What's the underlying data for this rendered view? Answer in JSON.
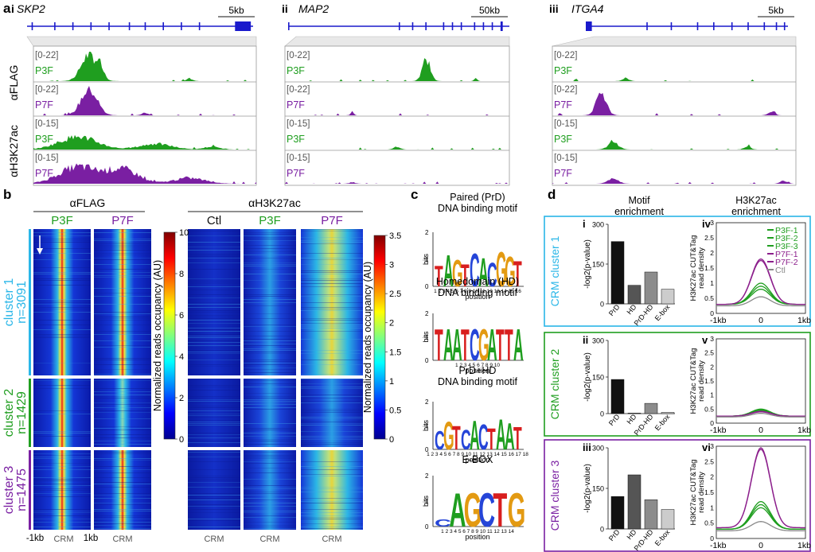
{
  "panel_a": {
    "letter": "a",
    "genes": [
      {
        "roman": "i",
        "name": "SKP2",
        "scale": "5kb"
      },
      {
        "roman": "ii",
        "name": "MAP2",
        "scale": "50kb"
      },
      {
        "roman": "iii",
        "name": "ITGA4",
        "scale": "5kb"
      }
    ],
    "antibodies": [
      "αFLAG",
      "αH3K27ac"
    ],
    "tracks": [
      {
        "range": "[0-22]",
        "label": "P3F"
      },
      {
        "range": "[0-22]",
        "label": "P7F"
      },
      {
        "range": "[0-15]",
        "label": "P3F"
      },
      {
        "range": "[0-15]",
        "label": "P7F"
      }
    ],
    "colors": {
      "P3F": "#1f9e1f",
      "P7F": "#7a1fa2",
      "gene": "#1a1acc"
    }
  },
  "panel_b": {
    "letter": "b",
    "flag_title": "αFLAG",
    "h3_title": "αH3K27ac",
    "flag_cols": [
      "P3F",
      "P7F"
    ],
    "h3_cols": [
      "Ctl",
      "P3F",
      "P7F"
    ],
    "clusters": [
      {
        "name": "cluster 1",
        "n": "n=3091",
        "color": "#29b6e8"
      },
      {
        "name": "cluster 2",
        "n": "n=1429",
        "color": "#1f9e1f"
      },
      {
        "name": "cluster 3",
        "n": "n=1475",
        "color": "#7a1fa2"
      }
    ],
    "x_left": "-1kb",
    "x_center": "CRM",
    "x_right": "1kb",
    "cbar1": {
      "label": "Normalized reads occupancy (AU)",
      "ticks": [
        "10",
        "8",
        "6",
        "4",
        "2",
        "0"
      ]
    },
    "cbar2": {
      "label": "Normalized reads occupancy (AU)",
      "ticks": [
        "3.5",
        "3",
        "2.5",
        "2",
        "1.5",
        "1",
        "0.5",
        "0"
      ]
    }
  },
  "panel_c": {
    "letter": "c",
    "motifs": [
      {
        "title1": "Paired (PrD)",
        "title2": "DNA binding motif",
        "seq": "TAGTCACGGT",
        "positions": "1 2 3 4 5 6 7 8 9 10 11 12 13 14 15 16"
      },
      {
        "title1": "Homedomain (HD)",
        "title2": "DNA binding motif",
        "seq": "TAATCGATTA",
        "positions": "1 2 3 4 5 6 7 8 9 10"
      },
      {
        "title1": "PrD+HD",
        "title2": "DNA binding motif",
        "seq": "CGTCACTAAT",
        "positions": "1 2 3 4 5 6 7 8 9 10 11 12 13 14 15 16 17 18"
      },
      {
        "title1": "E-BOX",
        "title2": "",
        "seq": "CAGCTG",
        "positions": "1 2 3 4 5 6 7 8 9 10 11 12 13 14"
      }
    ],
    "y_label": "bits",
    "x_label": "position",
    "y_ticks": [
      "2",
      "1",
      "0"
    ]
  },
  "panel_d": {
    "letter": "d",
    "col1_title1": "Motif",
    "col1_title2": "enrichment",
    "col2_title1": "H3K27ac",
    "col2_title2": "enrichment",
    "bar_ylabel": "-log2(p-value)",
    "bar_categories": [
      "PrD",
      "HD",
      "PrD-HD",
      "E-box"
    ],
    "bar_colors": [
      "#111111",
      "#555555",
      "#8c8c8c",
      "#cccccc"
    ],
    "line_ylabel1": "H3K27ac CUT&Tag",
    "line_ylabel2": "read density",
    "x_left": "-1kb",
    "x_center": "0",
    "x_right": "1kb",
    "legend": [
      "P3F-1",
      "P3F-2",
      "P3F-3",
      "P7F-1",
      "P7F-2",
      "Ctl"
    ],
    "rows": [
      {
        "label": "CRM cluster 1",
        "color": "#29b6e8",
        "roman_bar": "i",
        "roman_line": "iv",
        "bar_ticks": [
          "300",
          "150",
          "0"
        ],
        "line_ticks": [
          "3",
          "2.5",
          "2",
          "1.5",
          "1",
          "0.5",
          "0"
        ]
      },
      {
        "label": "CRM cluster 2",
        "color": "#1f9e1f",
        "roman_bar": "ii",
        "roman_line": "v",
        "bar_ticks": [
          "300",
          "150",
          "0"
        ],
        "line_ticks": [
          "3",
          "2.5",
          "2",
          "1.5",
          "1",
          "0.5",
          "0"
        ]
      },
      {
        "label": "CRM cluster 3",
        "color": "#7a1fa2",
        "roman_bar": "iii",
        "roman_line": "vi",
        "bar_ticks": [
          "300",
          "150",
          "0"
        ],
        "line_ticks": [
          "3",
          "2.5",
          "2",
          "1.5",
          "1",
          "0.5",
          "0"
        ]
      }
    ]
  },
  "chart_data": [
    {
      "type": "bar",
      "panel": "d-i",
      "categories": [
        "PrD",
        "HD",
        "PrD-HD",
        "E-box"
      ],
      "values": [
        235,
        70,
        120,
        55
      ],
      "ylabel": "-log2(p-value)",
      "ylim": [
        0,
        300
      ]
    },
    {
      "type": "bar",
      "panel": "d-ii",
      "categories": [
        "PrD",
        "HD",
        "PrD-HD",
        "E-box"
      ],
      "values": [
        140,
        2,
        42,
        5
      ],
      "ylabel": "-log2(p-value)",
      "ylim": [
        0,
        300
      ]
    },
    {
      "type": "bar",
      "panel": "d-iii",
      "categories": [
        "PrD",
        "HD",
        "PrD-HD",
        "E-box"
      ],
      "values": [
        120,
        200,
        108,
        72
      ],
      "ylabel": "-log2(p-value)",
      "ylim": [
        0,
        300
      ]
    },
    {
      "type": "line",
      "panel": "d-iv",
      "x_range": [
        -1,
        1
      ],
      "ylim": [
        0,
        3
      ],
      "series": [
        {
          "name": "P3F-1",
          "peak": 1.0,
          "base": 0.3
        },
        {
          "name": "P3F-2",
          "peak": 0.9,
          "base": 0.3
        },
        {
          "name": "P3F-3",
          "peak": 0.8,
          "base": 0.3
        },
        {
          "name": "P7F-1",
          "peak": 1.8,
          "base": 0.3
        },
        {
          "name": "P7F-2",
          "peak": 1.75,
          "base": 0.3
        },
        {
          "name": "Ctl",
          "peak": 0.55,
          "base": 0.25
        }
      ]
    },
    {
      "type": "line",
      "panel": "d-v",
      "x_range": [
        -1,
        1
      ],
      "ylim": [
        0,
        3
      ],
      "series": [
        {
          "name": "P3F-1",
          "peak": 0.5,
          "base": 0.25
        },
        {
          "name": "P3F-2",
          "peak": 0.48,
          "base": 0.25
        },
        {
          "name": "P3F-3",
          "peak": 0.45,
          "base": 0.25
        },
        {
          "name": "P7F-1",
          "peak": 0.42,
          "base": 0.25
        },
        {
          "name": "P7F-2",
          "peak": 0.4,
          "base": 0.25
        },
        {
          "name": "Ctl",
          "peak": 0.35,
          "base": 0.22
        }
      ]
    },
    {
      "type": "line",
      "panel": "d-vi",
      "x_range": [
        -1,
        1
      ],
      "ylim": [
        0,
        3
      ],
      "series": [
        {
          "name": "P3F-1",
          "peak": 1.2,
          "base": 0.3
        },
        {
          "name": "P3F-2",
          "peak": 1.1,
          "base": 0.3
        },
        {
          "name": "P3F-3",
          "peak": 1.0,
          "base": 0.3
        },
        {
          "name": "P7F-1",
          "peak": 2.95,
          "base": 0.35
        },
        {
          "name": "P7F-2",
          "peak": 2.9,
          "base": 0.35
        },
        {
          "name": "Ctl",
          "peak": 0.55,
          "base": 0.25
        }
      ]
    }
  ]
}
